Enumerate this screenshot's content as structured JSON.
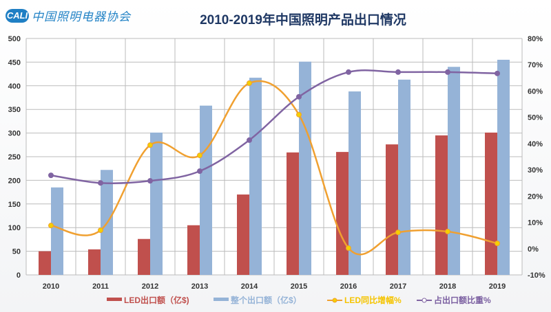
{
  "logo": {
    "mark": "CALI",
    "text": "中国照明电器协会"
  },
  "chart_data": {
    "type": "bar+line",
    "title": "2010-2019年中国照明产品出口情况",
    "categories": [
      "2010",
      "2011",
      "2012",
      "2013",
      "2014",
      "2015",
      "2016",
      "2017",
      "2018",
      "2019"
    ],
    "y_left": {
      "range": [
        0,
        500
      ],
      "ticks": [
        "0",
        "50",
        "100",
        "150",
        "200",
        "250",
        "300",
        "350",
        "400",
        "450",
        "500"
      ]
    },
    "y_right": {
      "range": [
        -10,
        80
      ],
      "ticks": [
        "-10%",
        "0%",
        "10%",
        "20%",
        "30%",
        "40%",
        "50%",
        "60%",
        "70%",
        "80%"
      ]
    },
    "grid": true,
    "legend_position": "bottom",
    "series": [
      {
        "name": "LED出口额（亿$)",
        "type": "bar",
        "axis": "left",
        "color": "#c0504d",
        "values": [
          50,
          54,
          76,
          105,
          170,
          259,
          260,
          276,
          295,
          301
        ]
      },
      {
        "name": "整个出口额（亿$）",
        "type": "bar",
        "axis": "left",
        "color": "#95b3d7",
        "values": [
          185,
          222,
          301,
          358,
          417,
          451,
          388,
          413,
          440,
          455
        ]
      },
      {
        "name": "LED同比增幅%",
        "type": "line",
        "axis": "right",
        "color": "#f0a030",
        "marker_color": "#f5d000",
        "values": [
          8.8,
          7.0,
          39.4,
          35.5,
          63.0,
          51.0,
          0.2,
          6.2,
          6.5,
          2.0
        ]
      },
      {
        "name": "占出口额比重%",
        "type": "line",
        "axis": "right",
        "color": "#8064a2",
        "values": [
          27.9,
          25.0,
          25.8,
          29.5,
          41.3,
          57.8,
          67.2,
          67.2,
          67.2,
          66.7
        ]
      }
    ]
  }
}
